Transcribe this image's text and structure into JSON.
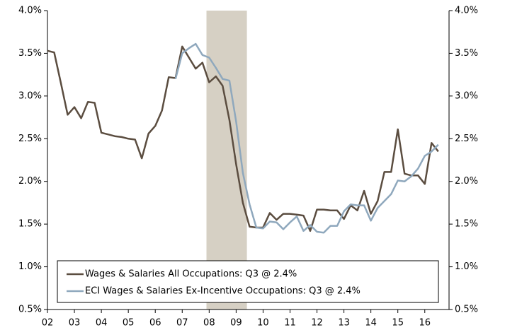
{
  "chart_data": {
    "type": "line",
    "x": [
      2002,
      2002.25,
      2002.5,
      2002.75,
      2003,
      2003.25,
      2003.5,
      2003.75,
      2004,
      2004.25,
      2004.5,
      2004.75,
      2005,
      2005.25,
      2005.5,
      2005.75,
      2006,
      2006.25,
      2006.5,
      2006.75,
      2007,
      2007.25,
      2007.5,
      2007.75,
      2008,
      2008.25,
      2008.5,
      2008.75,
      2009,
      2009.25,
      2009.5,
      2009.75,
      2010,
      2010.25,
      2010.5,
      2010.75,
      2011,
      2011.25,
      2011.5,
      2011.75,
      2012,
      2012.25,
      2012.5,
      2012.75,
      2013,
      2013.25,
      2013.5,
      2013.75,
      2014,
      2014.25,
      2014.5,
      2014.75,
      2015,
      2015.25,
      2015.5,
      2015.75,
      2016,
      2016.25,
      2016.5
    ],
    "series": [
      {
        "name": "Wages & Salaries All Occupations: Q3 @ 2.4%",
        "color": "#5b4d40",
        "values": [
          3.53,
          3.51,
          3.15,
          2.78,
          2.87,
          2.74,
          2.93,
          2.92,
          2.57,
          2.55,
          2.53,
          2.52,
          2.5,
          2.49,
          2.27,
          2.56,
          2.65,
          2.83,
          3.22,
          3.21,
          3.58,
          3.45,
          3.32,
          3.39,
          3.16,
          3.23,
          3.12,
          2.72,
          2.2,
          1.75,
          1.47,
          1.46,
          1.46,
          1.63,
          1.55,
          1.62,
          1.62,
          1.61,
          1.6,
          1.42,
          1.67,
          1.67,
          1.66,
          1.66,
          1.56,
          1.72,
          1.66,
          1.89,
          1.62,
          1.77,
          2.11,
          2.11,
          2.61,
          2.09,
          2.07,
          2.07,
          1.97,
          2.45,
          2.35
        ]
      },
      {
        "name": "ECI Wages & Salaries Ex-Incentive Occupations: Q3 @ 2.4%",
        "color": "#8fa8bd",
        "values": [
          null,
          null,
          null,
          null,
          null,
          null,
          null,
          null,
          null,
          null,
          null,
          null,
          null,
          null,
          null,
          null,
          null,
          null,
          null,
          3.2,
          3.5,
          3.56,
          3.61,
          3.48,
          3.45,
          3.33,
          3.2,
          3.18,
          2.7,
          2.1,
          1.73,
          1.46,
          1.45,
          1.53,
          1.52,
          1.44,
          1.52,
          1.59,
          1.42,
          1.49,
          1.41,
          1.4,
          1.48,
          1.48,
          1.65,
          1.73,
          1.72,
          1.72,
          1.54,
          1.69,
          1.77,
          1.85,
          2.01,
          2.0,
          2.06,
          2.15,
          2.3,
          2.35,
          2.43
        ]
      }
    ],
    "shaded_region": [
      2007.9,
      2009.4
    ],
    "shaded_color": "#d6d0c4",
    "xlim": [
      2002,
      2016.9
    ],
    "xticks": [
      {
        "value": 2002,
        "label": "02"
      },
      {
        "value": 2003,
        "label": "03"
      },
      {
        "value": 2004,
        "label": "04"
      },
      {
        "value": 2005,
        "label": "05"
      },
      {
        "value": 2006,
        "label": "06"
      },
      {
        "value": 2007,
        "label": "07"
      },
      {
        "value": 2008,
        "label": "08"
      },
      {
        "value": 2009,
        "label": "09"
      },
      {
        "value": 2010,
        "label": "10"
      },
      {
        "value": 2011,
        "label": "11"
      },
      {
        "value": 2012,
        "label": "12"
      },
      {
        "value": 2013,
        "label": "13"
      },
      {
        "value": 2014,
        "label": "14"
      },
      {
        "value": 2015,
        "label": "15"
      },
      {
        "value": 2016,
        "label": "16"
      }
    ],
    "ylim": [
      0.5,
      4.0
    ],
    "yticks": [
      {
        "value": 0.5,
        "label": "0.5%"
      },
      {
        "value": 1.0,
        "label": "1.0%"
      },
      {
        "value": 1.5,
        "label": "1.5%"
      },
      {
        "value": 2.0,
        "label": "2.0%"
      },
      {
        "value": 2.5,
        "label": "2.5%"
      },
      {
        "value": 3.0,
        "label": "3.0%"
      },
      {
        "value": 3.5,
        "label": "3.5%"
      },
      {
        "value": 4.0,
        "label": "4.0%"
      }
    ],
    "y2lim": [
      0.5,
      4.0
    ],
    "y2ticks": [
      {
        "value": 0.5,
        "label": "0.5%"
      },
      {
        "value": 1.0,
        "label": "1.0%"
      },
      {
        "value": 1.5,
        "label": "1.5%"
      },
      {
        "value": 2.0,
        "label": "2.0%"
      },
      {
        "value": 2.5,
        "label": "2.5%"
      },
      {
        "value": 3.0,
        "label": "3.0%"
      },
      {
        "value": 3.5,
        "label": "3.5%"
      },
      {
        "value": 4.0,
        "label": "4.0%"
      }
    ],
    "grid": false,
    "legend": "lower left"
  }
}
